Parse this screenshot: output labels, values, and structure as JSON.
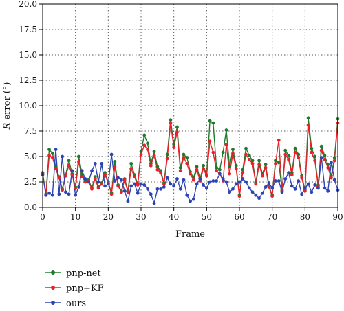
{
  "chart_data": {
    "type": "line",
    "title": "",
    "xlabel": "Frame",
    "ylabel_italic": "R",
    "ylabel_rest": " error (°)",
    "xlim": [
      0,
      90
    ],
    "ylim": [
      0,
      20
    ],
    "xticks": [
      "0",
      "10",
      "20",
      "30",
      "40",
      "50",
      "60",
      "70",
      "80",
      "90"
    ],
    "yticks": [
      "0.0",
      "2.5",
      "5.0",
      "7.5",
      "10.0",
      "12.5",
      "15.0",
      "17.5",
      "20.0"
    ],
    "grid": true,
    "legend_position": "bottom-left, below the plot",
    "series": [
      {
        "name": "pnp-net",
        "color": "#1f7a2e",
        "values": [
          3.4,
          1.3,
          5.7,
          5.3,
          4.0,
          3.0,
          1.8,
          3.2,
          4.6,
          3.3,
          2.0,
          5.0,
          3.3,
          2.6,
          2.7,
          1.9,
          3.0,
          2.0,
          2.4,
          3.4,
          2.5,
          1.4,
          4.5,
          2.2,
          1.6,
          2.8,
          1.6,
          4.3,
          3.2,
          2.3,
          5.5,
          7.1,
          6.3,
          4.3,
          5.5,
          4.0,
          3.6,
          2.4,
          5.2,
          8.6,
          6.2,
          7.9,
          3.9,
          5.2,
          4.9,
          3.5,
          2.9,
          4.0,
          2.8,
          4.1,
          3.2,
          8.5,
          8.3,
          3.9,
          3.7,
          5.4,
          7.6,
          4.0,
          5.7,
          4.1,
          1.2,
          3.7,
          5.8,
          5.1,
          4.6,
          2.4,
          4.6,
          3.3,
          4.2,
          2.1,
          1.2,
          4.6,
          4.4,
          1.7,
          5.6,
          5.1,
          3.4,
          5.8,
          5.2,
          3.1,
          1.7,
          8.8,
          5.8,
          5.0,
          2.2,
          6.0,
          5.1,
          4.2,
          3.1,
          4.9,
          8.7
        ]
      },
      {
        "name": "pnp+KF",
        "color": "#e8202a",
        "values": [
          3.3,
          1.2,
          5.1,
          4.9,
          3.8,
          2.9,
          1.7,
          3.1,
          4.1,
          3.2,
          1.9,
          4.5,
          3.0,
          2.5,
          2.6,
          1.8,
          2.8,
          1.9,
          2.3,
          3.2,
          2.4,
          1.3,
          4.0,
          2.1,
          1.5,
          2.7,
          1.5,
          3.8,
          3.0,
          2.2,
          5.2,
          6.1,
          5.7,
          4.1,
          5.1,
          3.7,
          3.4,
          2.3,
          4.8,
          8.3,
          5.9,
          7.4,
          3.6,
          4.9,
          4.3,
          3.3,
          2.7,
          3.7,
          2.6,
          3.8,
          3.1,
          6.5,
          5.4,
          3.6,
          3.3,
          2.6,
          6.2,
          3.3,
          5.3,
          3.8,
          1.1,
          3.4,
          5.2,
          4.7,
          4.3,
          2.3,
          4.2,
          3.1,
          3.9,
          2.0,
          1.1,
          4.3,
          6.6,
          1.6,
          5.2,
          4.7,
          3.2,
          5.4,
          4.9,
          2.9,
          1.6,
          8.1,
          5.4,
          4.6,
          2.1,
          5.6,
          4.7,
          3.9,
          2.9,
          4.6,
          8.3
        ]
      },
      {
        "name": "ours",
        "color": "#2b44b4",
        "values": [
          3.2,
          1.2,
          1.4,
          1.2,
          5.7,
          1.3,
          5.0,
          1.5,
          1.3,
          3.6,
          1.2,
          2.0,
          3.6,
          2.8,
          2.5,
          3.6,
          4.3,
          2.5,
          4.3,
          2.1,
          2.3,
          5.2,
          2.6,
          2.9,
          2.7,
          1.6,
          0.6,
          2.1,
          2.3,
          1.4,
          2.3,
          2.2,
          1.8,
          1.3,
          0.4,
          1.8,
          1.8,
          2.0,
          2.9,
          2.3,
          2.1,
          2.8,
          1.8,
          2.7,
          1.2,
          0.6,
          0.8,
          2.3,
          2.8,
          2.2,
          1.9,
          2.5,
          2.6,
          2.6,
          3.3,
          2.8,
          2.5,
          1.5,
          1.8,
          2.3,
          2.5,
          2.8,
          2.5,
          1.9,
          1.5,
          1.2,
          0.9,
          1.4,
          2.0,
          2.4,
          1.9,
          2.6,
          2.6,
          1.5,
          2.8,
          3.4,
          2.1,
          1.8,
          2.6,
          1.3,
          1.9,
          2.3,
          1.5,
          2.2,
          1.9,
          4.9,
          1.9,
          1.6,
          4.4,
          2.7,
          1.7
        ]
      }
    ]
  }
}
